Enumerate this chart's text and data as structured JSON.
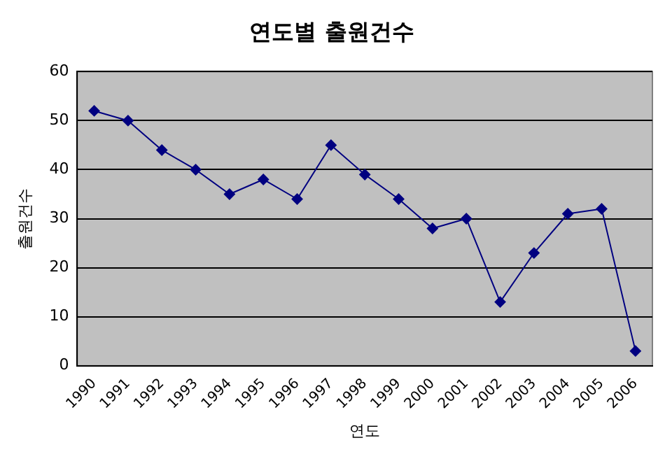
{
  "chart_data": {
    "type": "line",
    "title": "연도별 출원건수",
    "xlabel": "연도",
    "ylabel": "출원건수",
    "categories": [
      "1990",
      "1991",
      "1992",
      "1993",
      "1994",
      "1995",
      "1996",
      "1997",
      "1998",
      "1999",
      "2000",
      "2001",
      "2002",
      "2003",
      "2004",
      "2005",
      "2006"
    ],
    "series": [
      {
        "color": "#000080",
        "values": [
          52,
          50,
          44,
          40,
          35,
          38,
          34,
          45,
          39,
          34,
          28,
          30,
          13,
          23,
          31,
          32,
          3
        ]
      }
    ],
    "ylim": [
      0,
      60
    ],
    "yticks": [
      0,
      10,
      20,
      30,
      40,
      50,
      60
    ],
    "grid": "y",
    "legend": false,
    "marker": "diamond",
    "line_style": "solid"
  }
}
